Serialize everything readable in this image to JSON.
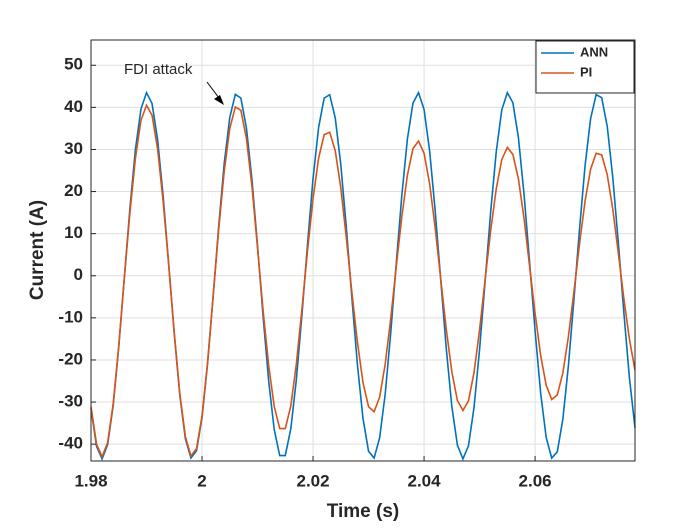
{
  "chart_data": {
    "type": "line",
    "xlabel": "Time (s)",
    "ylabel": "Current (A)",
    "annotation": "FDI attack",
    "xlim": [
      1.98,
      2.078
    ],
    "ylim": [
      -44,
      56
    ],
    "xticks": [
      1.98,
      2,
      2.02,
      2.04,
      2.06
    ],
    "yticks": [
      -40,
      -30,
      -20,
      -10,
      0,
      10,
      20,
      30,
      40,
      50
    ],
    "grid": true,
    "legend": "northeast",
    "x": [
      1.98,
      1.981,
      1.982,
      1.983,
      1.984,
      1.985,
      1.986,
      1.987,
      1.988,
      1.989,
      1.99,
      1.991,
      1.992,
      1.993,
      1.994,
      1.995,
      1.996,
      1.997,
      1.998,
      1.999,
      2.0,
      2.001,
      2.002,
      2.003,
      2.004,
      2.005,
      2.006,
      2.007,
      2.008,
      2.009,
      2.01,
      2.011,
      2.012,
      2.013,
      2.014,
      2.015,
      2.016,
      2.017,
      2.018,
      2.019,
      2.02,
      2.021,
      2.022,
      2.023,
      2.024,
      2.025,
      2.026,
      2.027,
      2.028,
      2.029,
      2.03,
      2.031,
      2.032,
      2.033,
      2.034,
      2.035,
      2.036,
      2.037,
      2.038,
      2.039,
      2.04,
      2.041,
      2.042,
      2.043,
      2.044,
      2.045,
      2.046,
      2.047,
      2.048,
      2.049,
      2.05,
      2.051,
      2.052,
      2.053,
      2.054,
      2.055,
      2.056,
      2.057,
      2.058,
      2.059,
      2.06,
      2.061,
      2.062,
      2.063,
      2.064,
      2.065,
      2.066,
      2.067,
      2.068,
      2.069,
      2.07,
      2.071,
      2.072,
      2.073,
      2.074,
      2.075,
      2.076,
      2.077,
      2.078
    ],
    "series": [
      {
        "name": "ANN",
        "color": "#0072BD",
        "values": [
          -31.5,
          -40.5,
          -43.5,
          -40.1,
          -30.8,
          -16.9,
          -0.6,
          15.9,
          30.0,
          39.6,
          43.5,
          40.9,
          32.3,
          18.9,
          2.7,
          -13.8,
          -28.4,
          -38.7,
          -43.3,
          -41.6,
          -33.7,
          -20.9,
          -5.0,
          11.7,
          26.7,
          37.6,
          43.1,
          42.2,
          35.1,
          22.8,
          7.1,
          -9.6,
          -24.9,
          -36.5,
          -42.7,
          -42.7,
          -36.3,
          -24.6,
          -9.3,
          7.4,
          23.1,
          35.2,
          42.2,
          43.0,
          37.5,
          26.4,
          11.4,
          -5.3,
          -21.2,
          -33.9,
          -41.7,
          -43.3,
          -38.5,
          -28.1,
          -13.5,
          3.1,
          19.2,
          32.5,
          41.0,
          43.5,
          39.5,
          29.7,
          15.5,
          -0.9,
          -17.3,
          -31.0,
          -40.2,
          -43.5,
          -40.4,
          -31.3,
          -17.5,
          -1.3,
          15.2,
          29.4,
          39.4,
          43.5,
          41.1,
          32.8,
          19.5,
          3.4,
          -13.1,
          -27.8,
          -38.4,
          -43.3,
          -41.8,
          -34.1,
          -21.4,
          -5.6,
          11.0,
          26.1,
          37.3,
          43.0,
          42.3,
          35.5,
          23.3,
          7.8,
          -8.9,
          -24.3,
          -36.1
        ]
      },
      {
        "name": "PI",
        "color": "#D95319",
        "values": [
          -31.1,
          -40.0,
          -43.0,
          -39.6,
          -30.4,
          -16.7,
          -0.5,
          14.8,
          27.9,
          36.9,
          40.5,
          38.1,
          30.1,
          17.6,
          2.6,
          -13.6,
          -28.0,
          -38.2,
          -42.8,
          -41.1,
          -33.3,
          -20.6,
          -4.9,
          10.9,
          24.8,
          35.0,
          40.1,
          39.3,
          32.6,
          21.2,
          6.6,
          -8.2,
          -21.2,
          -31.0,
          -36.3,
          -36.3,
          -30.9,
          -20.9,
          -7.9,
          5.9,
          18.3,
          27.9,
          33.5,
          34.1,
          29.7,
          20.9,
          9.0,
          -4.0,
          -15.8,
          -25.4,
          -31.1,
          -32.3,
          -28.8,
          -21.0,
          -10.1,
          2.3,
          14.1,
          23.9,
          30.2,
          32.0,
          29.1,
          21.9,
          11.4,
          -0.7,
          -12.7,
          -22.8,
          -29.6,
          -32.0,
          -29.7,
          -23.0,
          -12.9,
          -0.9,
          10.7,
          20.6,
          27.6,
          30.5,
          28.8,
          23.0,
          13.7,
          2.4,
          -8.9,
          -18.9,
          -26.0,
          -29.4,
          -28.3,
          -23.1,
          -14.5,
          -3.8,
          7.5,
          17.7,
          25.3,
          29.1,
          28.7,
          24.0,
          15.8,
          5.3,
          -5.5,
          -15.1,
          -22.4
        ]
      }
    ]
  }
}
